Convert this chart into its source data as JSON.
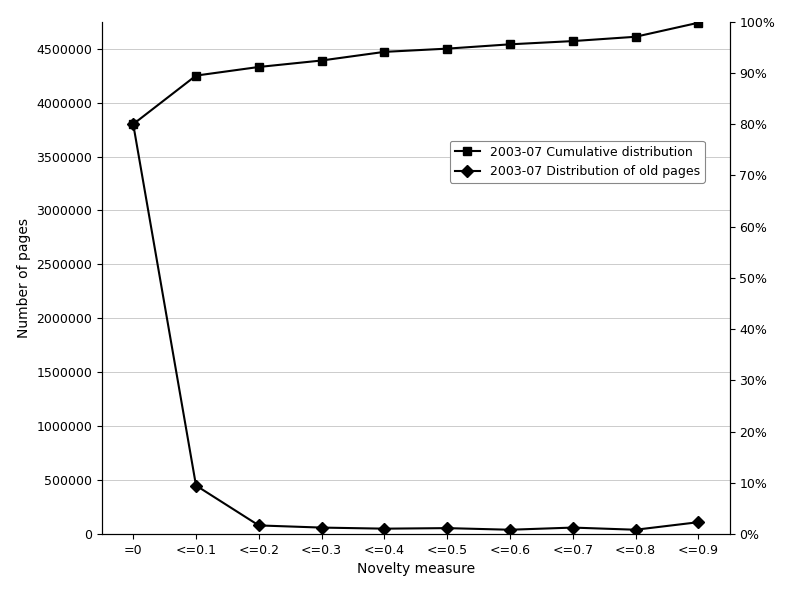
{
  "x_labels": [
    "=0",
    "<=0.1",
    "<=0.2",
    "<=0.3",
    "<=0.4",
    "<=0.5",
    "<=0.6",
    "<=0.7",
    "<=0.8",
    "<=0.9"
  ],
  "cumul_x": [
    0,
    1,
    2,
    3,
    4,
    5,
    6,
    7,
    8,
    9
  ],
  "cumul_y": [
    3800000,
    4250000,
    4330000,
    4390000,
    4470000,
    4500000,
    4540000,
    4570000,
    4610000,
    4740000
  ],
  "dist_x": [
    0,
    1,
    2,
    3,
    4,
    5,
    6,
    7,
    8,
    9
  ],
  "dist_y": [
    3800000,
    450000,
    80000,
    60000,
    50000,
    55000,
    40000,
    60000,
    40000,
    110000
  ],
  "ylabel_left": "Number of pages",
  "xlabel": "Novelty measure",
  "ylim_left": [
    0,
    4750000
  ],
  "left_yticks": [
    0,
    500000,
    1000000,
    1500000,
    2000000,
    2500000,
    3000000,
    3500000,
    4000000,
    4500000
  ],
  "right_yticks": [
    0.0,
    0.1,
    0.2,
    0.3,
    0.4,
    0.5,
    0.6,
    0.7,
    0.8,
    0.9,
    1.0
  ],
  "legend_cumul": "2003-07 Cumulative distribution",
  "legend_dist": "2003-07 Distribution of old pages",
  "line_color": "#000000",
  "marker_square": "s",
  "marker_diamond": "D",
  "background_color": "#ffffff",
  "grid_color": "#cccccc",
  "axis_fontsize": 10,
  "tick_fontsize": 9,
  "legend_fontsize": 9,
  "markersize": 6,
  "linewidth": 1.5
}
